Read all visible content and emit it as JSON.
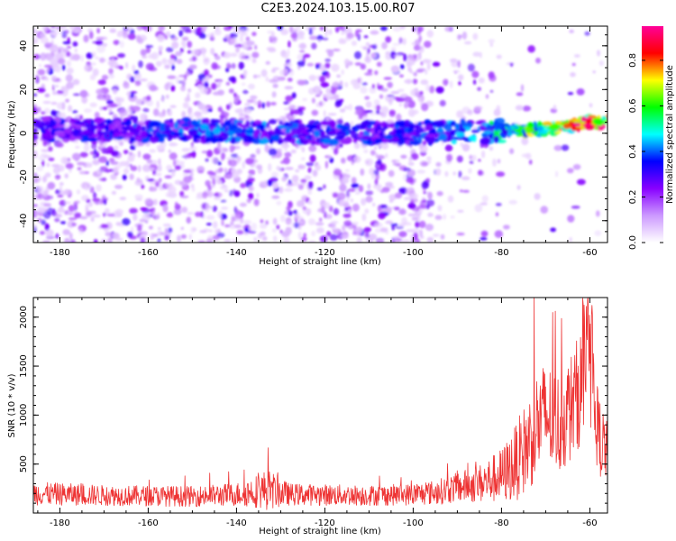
{
  "title": "C2E3.2024.103.15.00.R07",
  "chart_data": [
    {
      "type": "heatmap",
      "xlabel": "Height of straight line (km)",
      "ylabel": "Frequency (Hz)",
      "xlim": [
        -186,
        -56
      ],
      "ylim": [
        -50,
        49
      ],
      "x_ticks": [
        -180,
        -160,
        -140,
        -120,
        -100,
        -80,
        -60
      ],
      "y_ticks": [
        -40,
        -20,
        0,
        20,
        40
      ],
      "grid": false,
      "colorbar": {
        "label": "Normalized spectral amplitude",
        "range": [
          0,
          0.95
        ],
        "ticks": [
          0.0,
          0.2,
          0.4,
          0.6,
          0.8
        ],
        "colormap": [
          "#ffffff",
          "#cc99ff",
          "#8800ff",
          "#0000ff",
          "#00ffff",
          "#00ff00",
          "#ffff00",
          "#ff0000",
          "#ff0099"
        ]
      },
      "ridge": {
        "description_points": [
          [
            -186,
            2
          ],
          [
            -100,
            0
          ],
          [
            -80,
            1
          ],
          [
            -70,
            2
          ],
          [
            -60,
            5
          ],
          [
            -56,
            5
          ]
        ],
        "amplitude_at": [
          [
            -186,
            0.3
          ],
          [
            -140,
            0.4
          ],
          [
            -100,
            0.35
          ],
          [
            -85,
            0.45
          ],
          [
            -75,
            0.6
          ],
          [
            -62,
            0.85
          ],
          [
            -57,
            0.85
          ]
        ]
      }
    },
    {
      "type": "line",
      "xlabel": "Height of straight line (km)",
      "ylabel": "SNR (10 * v/v)",
      "xlim": [
        -186,
        -56
      ],
      "ylim": [
        0,
        2200
      ],
      "x_ticks": [
        -180,
        -160,
        -140,
        -120,
        -100,
        -80,
        -60
      ],
      "y_ticks": [
        500,
        1000,
        1500,
        2000
      ],
      "color": "#ee3333",
      "envelope": {
        "x": [
          -186,
          -170,
          -150,
          -140,
          -136,
          -133,
          -128,
          -110,
          -100,
          -95,
          -90,
          -85,
          -80,
          -77,
          -74,
          -72,
          -70,
          -67,
          -64,
          -62,
          -60,
          -58,
          -56
        ],
        "baseline": [
          200,
          180,
          170,
          190,
          220,
          240,
          190,
          180,
          190,
          210,
          260,
          300,
          380,
          500,
          700,
          900,
          1000,
          900,
          1100,
          1300,
          1400,
          800,
          600
        ],
        "spread": [
          170,
          150,
          150,
          170,
          230,
          300,
          160,
          150,
          160,
          180,
          220,
          280,
          400,
          550,
          700,
          800,
          800,
          750,
          800,
          850,
          800,
          600,
          450
        ]
      }
    }
  ]
}
